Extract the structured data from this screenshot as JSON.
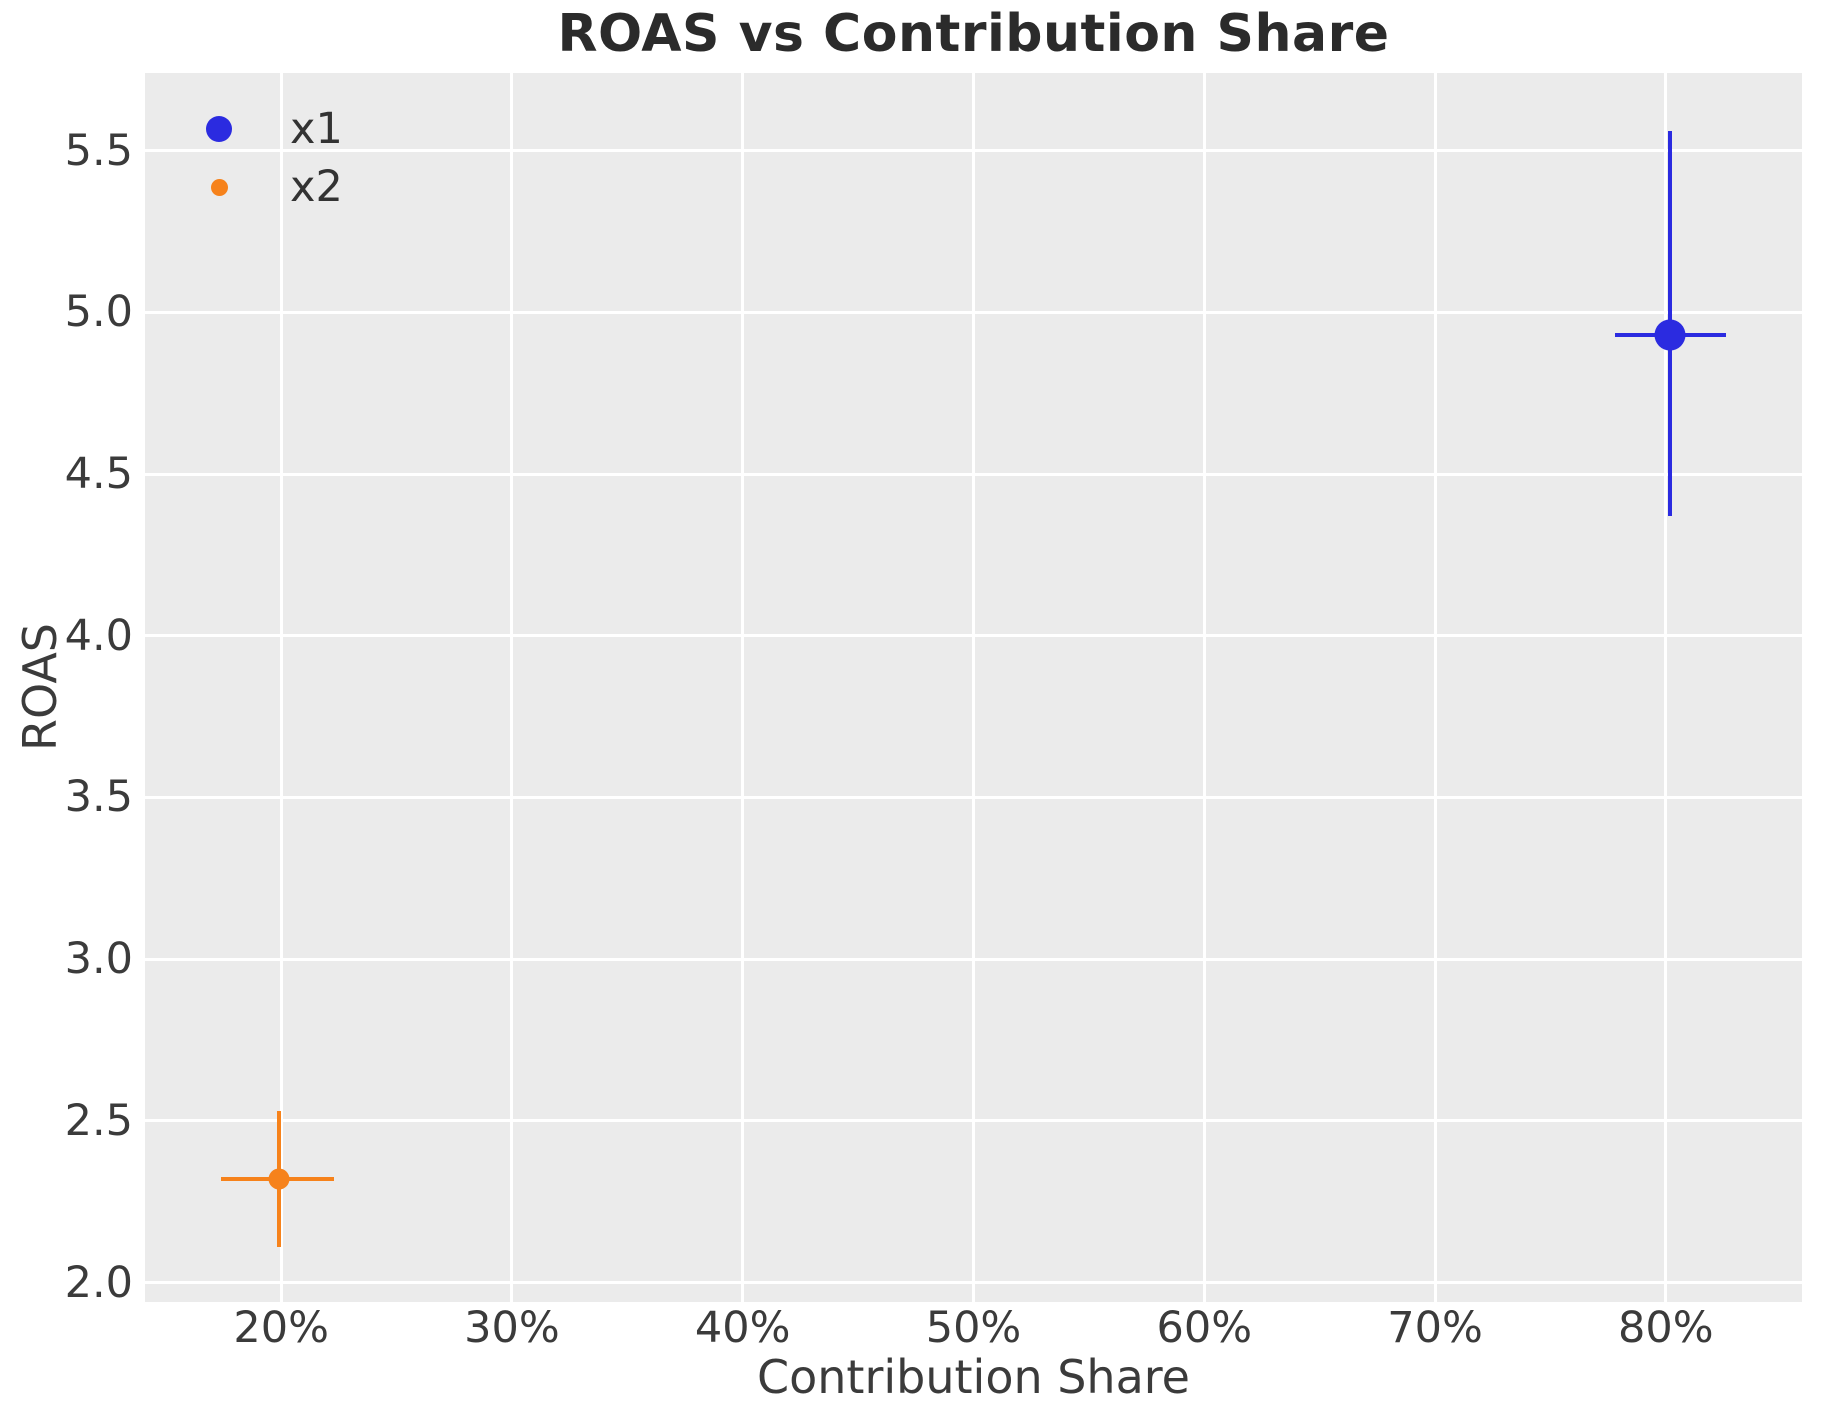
{
  "chart_data": {
    "type": "scatter",
    "title": "ROAS vs Contribution Share",
    "xlabel": "Contribution Share",
    "ylabel": "ROAS",
    "grid": true,
    "plot_background": "#ebebeb",
    "grid_color": "#ffffff",
    "text_color": "#3b3b3b",
    "title_color": "#2b2b2b",
    "xlim": [
      14.1,
      85.9
    ],
    "ylim": [
      1.94,
      5.74
    ],
    "x_ticks": [
      20,
      30,
      40,
      50,
      60,
      70,
      80
    ],
    "x_tick_labels": [
      "20%",
      "30%",
      "40%",
      "50%",
      "60%",
      "70%",
      "80%"
    ],
    "y_ticks": [
      2.0,
      2.5,
      3.0,
      3.5,
      4.0,
      4.5,
      5.0,
      5.5
    ],
    "y_tick_labels": [
      "2.0",
      "2.5",
      "3.0",
      "3.5",
      "4.0",
      "4.5",
      "5.0",
      "5.5"
    ],
    "legend_position": "upper left",
    "legend_frame": false,
    "series": [
      {
        "name": "x1",
        "color": "#2b2be0",
        "marker_size": 31,
        "legend_marker_size": 26,
        "error_line_width": 4,
        "points": [
          {
            "x": 80.2,
            "y": 4.93,
            "xerr_low": 77.8,
            "xerr_high": 82.6,
            "yerr_low": 4.37,
            "yerr_high": 5.56
          }
        ]
      },
      {
        "name": "x2",
        "color": "#f6821b",
        "marker_size": 21,
        "legend_marker_size": 17,
        "error_line_width": 4,
        "points": [
          {
            "x": 19.9,
            "y": 2.32,
            "xerr_low": 17.4,
            "xerr_high": 22.3,
            "yerr_low": 2.11,
            "yerr_high": 2.53
          }
        ]
      }
    ]
  }
}
